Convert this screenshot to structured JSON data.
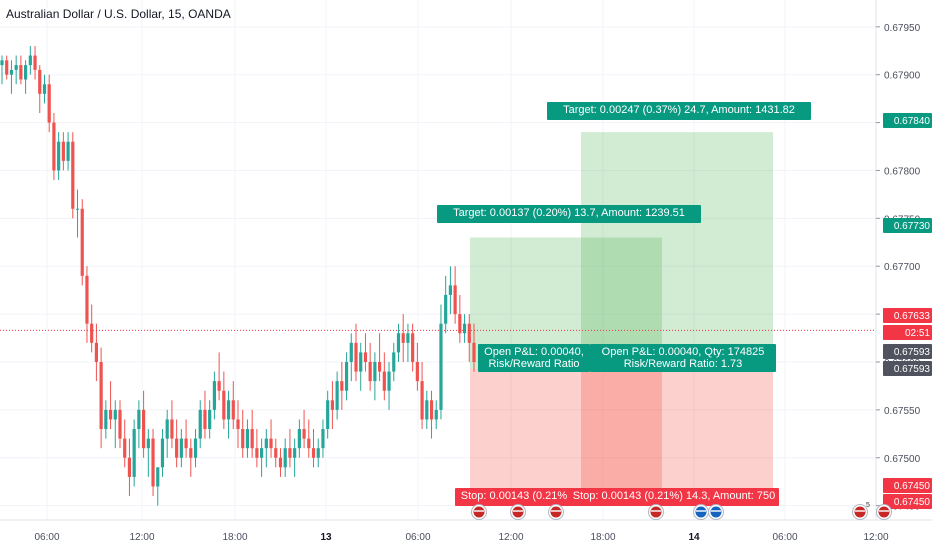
{
  "chart_data": {
    "type": "candlestick",
    "title": "Australian Dollar / U.S. Dollar, 15, OANDA",
    "y_axis": {
      "side": "right",
      "range": [
        0.67435,
        0.67978
      ],
      "ticks": [
        "0.67950",
        "0.67900",
        "0.67850",
        "0.67800",
        "0.67750",
        "0.67700",
        "0.67650",
        "0.67600",
        "0.67550",
        "0.67500",
        "0.67450"
      ]
    },
    "x_axis": {
      "ticks": [
        {
          "label": "06:00",
          "bold": false
        },
        {
          "label": "12:00",
          "bold": false
        },
        {
          "label": "18:00",
          "bold": false
        },
        {
          "label": "13",
          "bold": true
        },
        {
          "label": "06:00",
          "bold": false
        },
        {
          "label": "12:00",
          "bold": false
        },
        {
          "label": "18:00",
          "bold": false
        },
        {
          "label": "14",
          "bold": true
        },
        {
          "label": "06:00",
          "bold": false
        },
        {
          "label": "12:00",
          "bold": false
        }
      ]
    },
    "grid": true,
    "price_tags": [
      {
        "label": "0.67840",
        "color": "#089981"
      },
      {
        "label": "0.67730",
        "color": "#089981"
      },
      {
        "label": "0.67633",
        "color": "#f23645"
      },
      {
        "label": "02:51",
        "color": "#f23645"
      },
      {
        "label": "0.67593",
        "color": "#50535e"
      },
      {
        "label": "0.67593",
        "color": "#50535e"
      },
      {
        "label": "0.67450",
        "color": "#f23645"
      },
      {
        "label": "0.67450",
        "color": "#f23645"
      }
    ],
    "positions": [
      {
        "target_label": "Target: 0.00137 (0.20%) 13.7, Amount: 1239.51",
        "stop_label": "Stop: 0.00143 (0.21%",
        "pnl_label_1": "Open P&L: 0.00040,",
        "pnl_label_2": "Risk/Reward Ratio",
        "entry": 0.67593,
        "target": 0.6773,
        "stop": 0.6745
      },
      {
        "target_label": "Target: 0.00247 (0.37%) 24.7, Amount: 1431.82",
        "stop_label": "Stop: 0.00143 (0.21%) 14.3, Amount: 750",
        "pnl_label_1": "Open P&L: 0.00040, Qty: 174825",
        "pnl_label_2": "Risk/Reward Ratio: 1.73",
        "entry": 0.67593,
        "target": 0.6784,
        "stop": 0.6745
      }
    ],
    "current_price": 0.67633,
    "events": [
      {
        "label": ""
      },
      {
        "label": ""
      },
      {
        "label": ""
      },
      {
        "label": ""
      },
      {
        "label": ""
      },
      {
        "label": ""
      },
      {
        "label": "5"
      },
      {
        "label": ""
      }
    ],
    "candles": [
      [
        0.6791,
        0.6792,
        0.6789,
        0.67915
      ],
      [
        0.67915,
        0.6792,
        0.67895,
        0.679
      ],
      [
        0.679,
        0.67915,
        0.6788,
        0.67905
      ],
      [
        0.67905,
        0.6792,
        0.6789,
        0.6791
      ],
      [
        0.6791,
        0.6792,
        0.6789,
        0.67895
      ],
      [
        0.67895,
        0.67915,
        0.6788,
        0.6791
      ],
      [
        0.6791,
        0.6793,
        0.679,
        0.6792
      ],
      [
        0.6792,
        0.6793,
        0.67895,
        0.67905
      ],
      [
        0.67905,
        0.6791,
        0.6786,
        0.6788
      ],
      [
        0.6788,
        0.679,
        0.6787,
        0.6789
      ],
      [
        0.6789,
        0.679,
        0.6784,
        0.6785
      ],
      [
        0.6785,
        0.6786,
        0.6779,
        0.678
      ],
      [
        0.678,
        0.6784,
        0.6779,
        0.6783
      ],
      [
        0.6783,
        0.6784,
        0.678,
        0.6781
      ],
      [
        0.6781,
        0.6784,
        0.678,
        0.6783
      ],
      [
        0.6783,
        0.6784,
        0.6775,
        0.6776
      ],
      [
        0.6776,
        0.6778,
        0.6773,
        0.6776
      ],
      [
        0.6776,
        0.6777,
        0.6768,
        0.6769
      ],
      [
        0.6769,
        0.677,
        0.6762,
        0.6764
      ],
      [
        0.6764,
        0.6766,
        0.6761,
        0.6762
      ],
      [
        0.6762,
        0.6764,
        0.6758,
        0.676
      ],
      [
        0.676,
        0.67615,
        0.6751,
        0.6753
      ],
      [
        0.6753,
        0.6756,
        0.6752,
        0.6755
      ],
      [
        0.6755,
        0.6758,
        0.6753,
        0.6754
      ],
      [
        0.6754,
        0.6756,
        0.6751,
        0.6755
      ],
      [
        0.6755,
        0.6756,
        0.6751,
        0.6752
      ],
      [
        0.6752,
        0.6754,
        0.6749,
        0.675
      ],
      [
        0.675,
        0.6752,
        0.6746,
        0.6748
      ],
      [
        0.6748,
        0.6754,
        0.6747,
        0.6753
      ],
      [
        0.6753,
        0.6756,
        0.6751,
        0.6755
      ],
      [
        0.6755,
        0.6757,
        0.675,
        0.6751
      ],
      [
        0.6751,
        0.6753,
        0.6748,
        0.6752
      ],
      [
        0.6752,
        0.6753,
        0.6746,
        0.6747
      ],
      [
        0.6747,
        0.6749,
        0.6745,
        0.6749
      ],
      [
        0.6749,
        0.6753,
        0.6748,
        0.6752
      ],
      [
        0.6752,
        0.6755,
        0.675,
        0.6754
      ],
      [
        0.6754,
        0.6756,
        0.6751,
        0.6752
      ],
      [
        0.6752,
        0.6754,
        0.6749,
        0.675
      ],
      [
        0.675,
        0.6753,
        0.6749,
        0.6752
      ],
      [
        0.6752,
        0.6754,
        0.675,
        0.6751
      ],
      [
        0.6751,
        0.6752,
        0.6748,
        0.675
      ],
      [
        0.675,
        0.6753,
        0.6749,
        0.6752
      ],
      [
        0.6752,
        0.6756,
        0.6751,
        0.6755
      ],
      [
        0.6755,
        0.6757,
        0.6752,
        0.6753
      ],
      [
        0.6753,
        0.6756,
        0.6752,
        0.6755
      ],
      [
        0.6755,
        0.6759,
        0.6754,
        0.6758
      ],
      [
        0.6758,
        0.6761,
        0.6756,
        0.6757
      ],
      [
        0.6757,
        0.6759,
        0.6753,
        0.6754
      ],
      [
        0.6754,
        0.6757,
        0.6752,
        0.6756
      ],
      [
        0.6756,
        0.6758,
        0.6753,
        0.6754
      ],
      [
        0.6754,
        0.6756,
        0.6751,
        0.6753
      ],
      [
        0.6753,
        0.6755,
        0.675,
        0.6751
      ],
      [
        0.6751,
        0.6754,
        0.675,
        0.6753
      ],
      [
        0.6753,
        0.6755,
        0.675,
        0.6751
      ],
      [
        0.6751,
        0.6753,
        0.6749,
        0.675
      ],
      [
        0.675,
        0.6752,
        0.6748,
        0.6751
      ],
      [
        0.6751,
        0.6753,
        0.6749,
        0.6752
      ],
      [
        0.6752,
        0.6754,
        0.675,
        0.6751
      ],
      [
        0.6751,
        0.6752,
        0.6749,
        0.675
      ],
      [
        0.675,
        0.6751,
        0.6748,
        0.6749
      ],
      [
        0.6749,
        0.6752,
        0.6748,
        0.6751
      ],
      [
        0.6751,
        0.6753,
        0.6749,
        0.675
      ],
      [
        0.675,
        0.6752,
        0.6748,
        0.6751
      ],
      [
        0.6751,
        0.6754,
        0.675,
        0.6753
      ],
      [
        0.6753,
        0.6755,
        0.6751,
        0.6752
      ],
      [
        0.6752,
        0.6754,
        0.675,
        0.6751
      ],
      [
        0.6751,
        0.6753,
        0.6749,
        0.675
      ],
      [
        0.675,
        0.6752,
        0.6749,
        0.6751
      ],
      [
        0.6751,
        0.6754,
        0.675,
        0.6753
      ],
      [
        0.6753,
        0.6757,
        0.6752,
        0.6756
      ],
      [
        0.6756,
        0.6758,
        0.6753,
        0.6755
      ],
      [
        0.6755,
        0.6759,
        0.6754,
        0.6758
      ],
      [
        0.6758,
        0.676,
        0.6755,
        0.6757
      ],
      [
        0.6757,
        0.6761,
        0.6756,
        0.676
      ],
      [
        0.676,
        0.6763,
        0.6758,
        0.6762
      ],
      [
        0.6762,
        0.6764,
        0.6758,
        0.6759
      ],
      [
        0.6759,
        0.6762,
        0.6757,
        0.6761
      ],
      [
        0.6761,
        0.6763,
        0.6759,
        0.676
      ],
      [
        0.676,
        0.6762,
        0.6757,
        0.6758
      ],
      [
        0.6758,
        0.6761,
        0.6756,
        0.676
      ],
      [
        0.676,
        0.6763,
        0.6758,
        0.6759
      ],
      [
        0.6759,
        0.6761,
        0.6756,
        0.6757
      ],
      [
        0.6757,
        0.676,
        0.6755,
        0.6759
      ],
      [
        0.6759,
        0.6762,
        0.6758,
        0.6761
      ],
      [
        0.6761,
        0.6764,
        0.676,
        0.6763
      ],
      [
        0.6763,
        0.6765,
        0.676,
        0.6762
      ],
      [
        0.6762,
        0.6764,
        0.676,
        0.6763
      ],
      [
        0.6763,
        0.6764,
        0.6759,
        0.676
      ],
      [
        0.676,
        0.6762,
        0.6757,
        0.6758
      ],
      [
        0.6758,
        0.676,
        0.6753,
        0.6754
      ],
      [
        0.6754,
        0.6757,
        0.6753,
        0.6756
      ],
      [
        0.6756,
        0.6757,
        0.6752,
        0.6754
      ],
      [
        0.6754,
        0.6756,
        0.6753,
        0.6755
      ],
      [
        0.6755,
        0.6766,
        0.6754,
        0.6764
      ],
      [
        0.6764,
        0.6769,
        0.6763,
        0.6767
      ],
      [
        0.6767,
        0.677,
        0.6765,
        0.6768
      ],
      [
        0.6768,
        0.677,
        0.6764,
        0.6765
      ],
      [
        0.6765,
        0.6767,
        0.6762,
        0.6763
      ],
      [
        0.6763,
        0.6765,
        0.6762,
        0.6764
      ],
      [
        0.6764,
        0.6765,
        0.676,
        0.6762
      ],
      [
        0.6762,
        0.6764,
        0.6759,
        0.676
      ]
    ]
  }
}
